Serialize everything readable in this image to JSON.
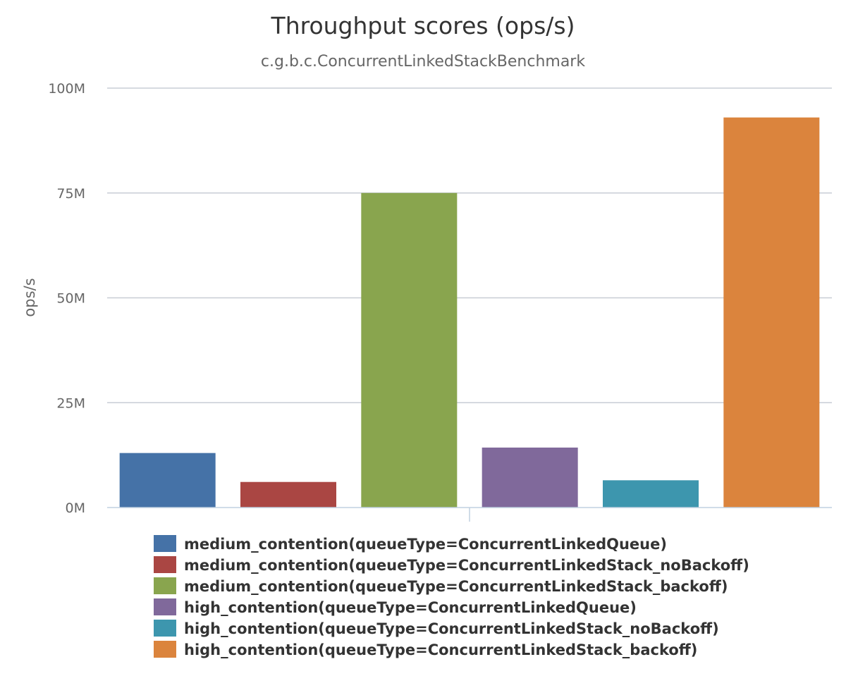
{
  "chart_data": {
    "type": "bar",
    "title": "Throughput scores (ops/s)",
    "subtitle": "c.g.b.c.ConcurrentLinkedStackBenchmark",
    "ylabel": "ops/s",
    "ylim": [
      0,
      100000000
    ],
    "yticks": [
      {
        "value": 0,
        "label": "0M"
      },
      {
        "value": 25000000,
        "label": "25M"
      },
      {
        "value": 50000000,
        "label": "50M"
      },
      {
        "value": 75000000,
        "label": "75M"
      },
      {
        "value": 100000000,
        "label": "100M"
      }
    ],
    "grid": true,
    "legend_position": "bottom",
    "series": [
      {
        "name": "medium_contention(queueType=ConcurrentLinkedQueue)",
        "value": 13000000,
        "color": "#4572A7"
      },
      {
        "name": "medium_contention(queueType=ConcurrentLinkedStack_noBackoff)",
        "value": 6100000,
        "color": "#AA4643"
      },
      {
        "name": "medium_contention(queueType=ConcurrentLinkedStack_backoff)",
        "value": 75000000,
        "color": "#89A54E"
      },
      {
        "name": "high_contention(queueType=ConcurrentLinkedQueue)",
        "value": 14300000,
        "color": "#80699B"
      },
      {
        "name": "high_contention(queueType=ConcurrentLinkedStack_noBackoff)",
        "value": 6500000,
        "color": "#3D96AE"
      },
      {
        "name": "high_contention(queueType=ConcurrentLinkedStack_backoff)",
        "value": 93000000,
        "color": "#DB843D"
      }
    ]
  }
}
